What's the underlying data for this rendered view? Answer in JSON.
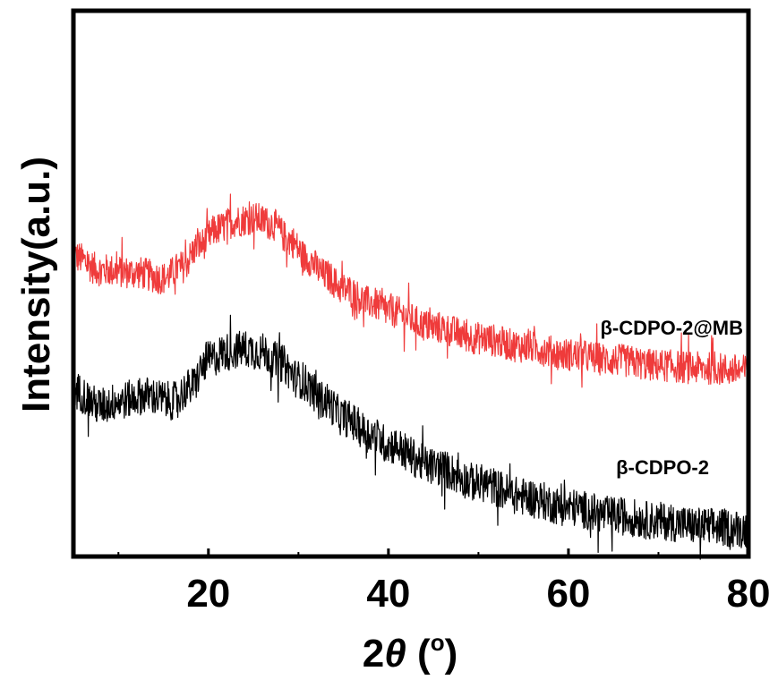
{
  "chart_data": {
    "type": "line",
    "xlabel_prefix": "2",
    "xlabel_symbol": "θ",
    "xlabel_suffix": " (",
    "xlabel_unit": "o",
    "xlabel_close": ")",
    "ylabel": "Intensity(a.u.)",
    "xlim": [
      5,
      80
    ],
    "ylim": [
      0,
      1
    ],
    "xticks": [
      20,
      40,
      60,
      80
    ],
    "xtick_labels": [
      "20",
      "40",
      "60",
      "80"
    ],
    "grid": false,
    "y_tick_labels_shown": false,
    "series": [
      {
        "name": "β-CDPO-2@MB",
        "color": "#ef3b3b",
        "noise": 0.03,
        "points": [
          [
            5,
            0.55
          ],
          [
            8,
            0.525
          ],
          [
            12,
            0.52
          ],
          [
            15,
            0.51
          ],
          [
            17,
            0.53
          ],
          [
            19,
            0.57
          ],
          [
            21,
            0.6
          ],
          [
            23,
            0.615
          ],
          [
            25,
            0.62
          ],
          [
            27,
            0.61
          ],
          [
            29,
            0.58
          ],
          [
            31,
            0.545
          ],
          [
            33,
            0.515
          ],
          [
            35,
            0.49
          ],
          [
            38,
            0.465
          ],
          [
            40,
            0.45
          ],
          [
            45,
            0.42
          ],
          [
            50,
            0.4
          ],
          [
            55,
            0.385
          ],
          [
            60,
            0.37
          ],
          [
            65,
            0.36
          ],
          [
            70,
            0.35
          ],
          [
            75,
            0.345
          ],
          [
            80,
            0.34
          ]
        ]
      },
      {
        "name": "β-CDPO-2",
        "color": "#000000",
        "noise": 0.035,
        "points": [
          [
            5,
            0.305
          ],
          [
            8,
            0.275
          ],
          [
            10,
            0.285
          ],
          [
            13,
            0.295
          ],
          [
            16,
            0.285
          ],
          [
            18,
            0.31
          ],
          [
            20,
            0.36
          ],
          [
            22,
            0.375
          ],
          [
            24,
            0.38
          ],
          [
            26,
            0.375
          ],
          [
            28,
            0.355
          ],
          [
            30,
            0.325
          ],
          [
            33,
            0.285
          ],
          [
            35,
            0.255
          ],
          [
            38,
            0.225
          ],
          [
            40,
            0.205
          ],
          [
            45,
            0.165
          ],
          [
            50,
            0.135
          ],
          [
            55,
            0.11
          ],
          [
            60,
            0.09
          ],
          [
            65,
            0.075
          ],
          [
            70,
            0.065
          ],
          [
            75,
            0.055
          ],
          [
            80,
            0.05
          ]
        ]
      }
    ]
  }
}
